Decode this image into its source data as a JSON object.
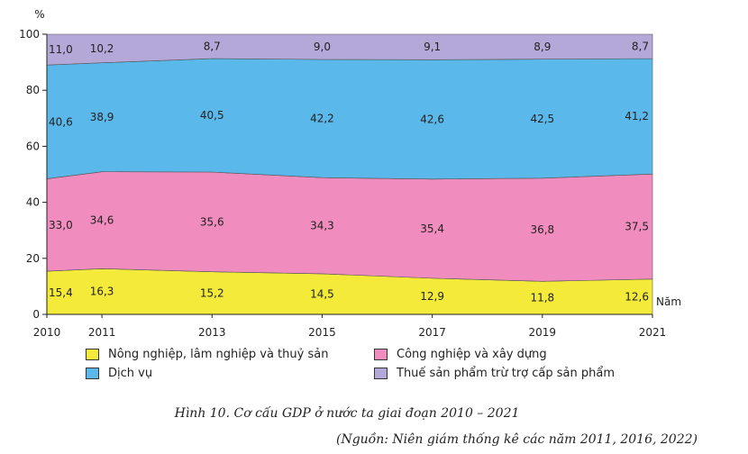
{
  "chart_data": {
    "type": "area",
    "stacked": true,
    "y_unit": "%",
    "x_unit": "Năm",
    "x": [
      2010,
      2011,
      2013,
      2015,
      2017,
      2019,
      2021
    ],
    "x_ticks": [
      "2010",
      "2011",
      "2013",
      "2015",
      "2017",
      "2019",
      "2021"
    ],
    "y_ticks": [
      "0",
      "20",
      "40",
      "60",
      "80",
      "100"
    ],
    "ylim": [
      0,
      100
    ],
    "grid": false,
    "legend_position": "bottom",
    "series": [
      {
        "name": "Nông nghiệp, lâm nghiệp và thuỷ sản",
        "color": "#f4ea3a",
        "values": [
          15.4,
          16.3,
          15.2,
          14.5,
          12.9,
          11.8,
          12.6
        ],
        "labels": [
          "15,4",
          "16,3",
          "15,2",
          "14,5",
          "12,9",
          "11,8",
          "12,6"
        ]
      },
      {
        "name": "Công nghiệp và xây dựng",
        "color": "#f08cbe",
        "values": [
          33.0,
          34.6,
          35.6,
          34.3,
          35.4,
          36.8,
          37.5
        ],
        "labels": [
          "33,0",
          "34,6",
          "35,6",
          "34,3",
          "35,4",
          "36,8",
          "37,5"
        ]
      },
      {
        "name": "Dịch vụ",
        "color": "#5bb8ea",
        "values": [
          40.6,
          38.9,
          40.5,
          42.2,
          42.6,
          42.5,
          41.2
        ],
        "labels": [
          "40,6",
          "38,9",
          "40,5",
          "42,2",
          "42,6",
          "42,5",
          "41,2"
        ]
      },
      {
        "name": "Thuế sản phẩm trừ trợ cấp sản phẩm",
        "color": "#b4a8d8",
        "values": [
          11.0,
          10.2,
          8.7,
          9.0,
          9.1,
          8.9,
          8.7
        ],
        "labels": [
          "11,0",
          "10,2",
          "8,7",
          "9,0",
          "9,1",
          "8,9",
          "8,7"
        ]
      }
    ],
    "legend_order": [
      0,
      1,
      2,
      3
    ],
    "caption": "Hình 10. Cơ cấu GDP ở nước ta giai đoạn 2010 – 2021",
    "source": "(Nguồn: Niên giám thống kê các năm 2011, 2016, 2022)"
  }
}
